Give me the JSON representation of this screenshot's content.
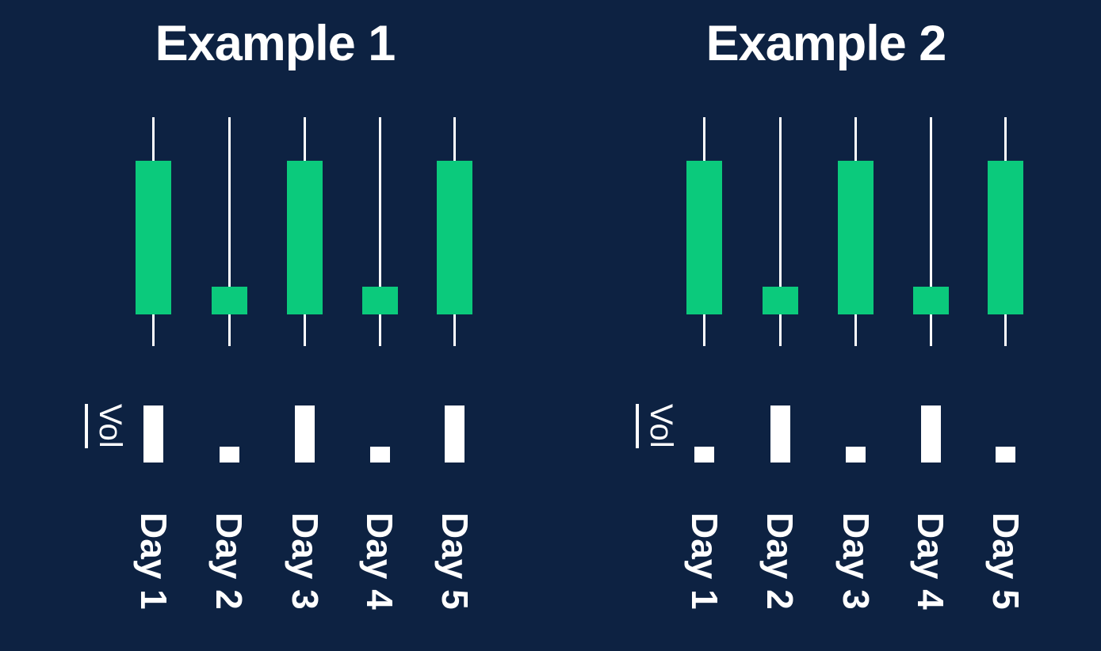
{
  "colors": {
    "background": "#0d2242",
    "candle_body": "#0bca7c",
    "candle_wick": "#ffffff",
    "volume_bar": "#ffffff",
    "text": "#ffffff"
  },
  "chart_data": [
    {
      "type": "candlestick",
      "title": "Example 1",
      "ylabel": "Vol",
      "categories": [
        "Day 1",
        "Day 2",
        "Day 3",
        "Day 4",
        "Day 5"
      ],
      "price_range": [
        0,
        100
      ],
      "volume_range": [
        0,
        100
      ],
      "layout": "no gridlines, no tick marks, rotated x labels, volume subpanel below price panel",
      "candles": [
        {
          "label": "Day 1",
          "open": 14,
          "high": 100,
          "low": 0,
          "close": 81,
          "volume": 100,
          "direction": "bullish"
        },
        {
          "label": "Day 2",
          "open": 14,
          "high": 100,
          "low": 0,
          "close": 26,
          "volume": 28,
          "direction": "bullish"
        },
        {
          "label": "Day 3",
          "open": 14,
          "high": 100,
          "low": 0,
          "close": 81,
          "volume": 100,
          "direction": "bullish"
        },
        {
          "label": "Day 4",
          "open": 14,
          "high": 100,
          "low": 0,
          "close": 26,
          "volume": 28,
          "direction": "bullish"
        },
        {
          "label": "Day 5",
          "open": 14,
          "high": 100,
          "low": 0,
          "close": 81,
          "volume": 100,
          "direction": "bullish"
        }
      ]
    },
    {
      "type": "candlestick",
      "title": "Example 2",
      "ylabel": "Vol",
      "categories": [
        "Day 1",
        "Day 2",
        "Day 3",
        "Day 4",
        "Day 5"
      ],
      "price_range": [
        0,
        100
      ],
      "volume_range": [
        0,
        100
      ],
      "layout": "no gridlines, no tick marks, rotated x labels, volume subpanel below price panel",
      "candles": [
        {
          "label": "Day 1",
          "open": 14,
          "high": 100,
          "low": 0,
          "close": 81,
          "volume": 28,
          "direction": "bullish"
        },
        {
          "label": "Day 2",
          "open": 14,
          "high": 100,
          "low": 0,
          "close": 26,
          "volume": 100,
          "direction": "bullish"
        },
        {
          "label": "Day 3",
          "open": 14,
          "high": 100,
          "low": 0,
          "close": 81,
          "volume": 28,
          "direction": "bullish"
        },
        {
          "label": "Day 4",
          "open": 14,
          "high": 100,
          "low": 0,
          "close": 26,
          "volume": 100,
          "direction": "bullish"
        },
        {
          "label": "Day 5",
          "open": 14,
          "high": 100,
          "low": 0,
          "close": 81,
          "volume": 28,
          "direction": "bullish"
        }
      ]
    }
  ]
}
